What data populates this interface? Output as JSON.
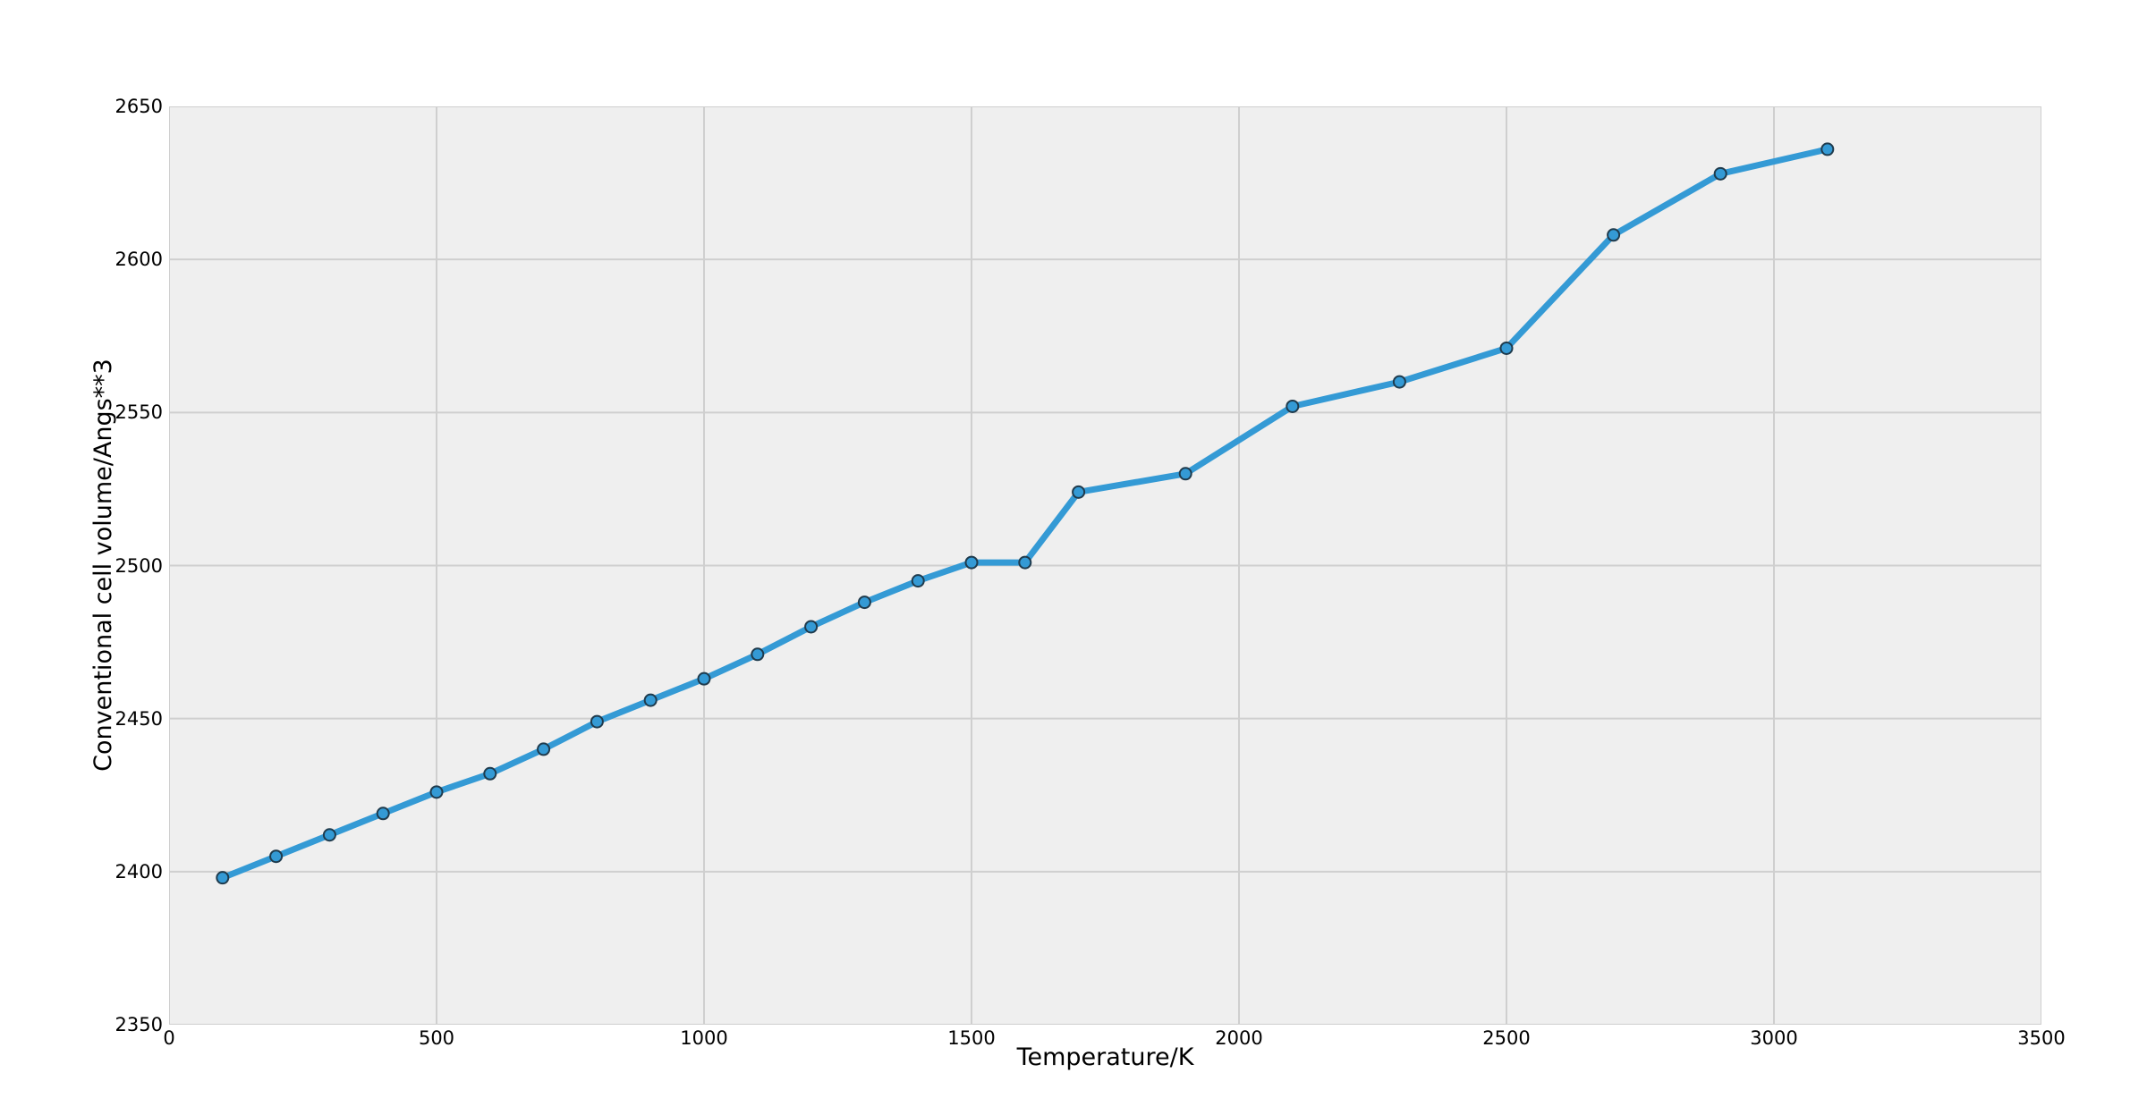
{
  "figure": {
    "background": "#ffffff",
    "plot_background": "#efefef",
    "grid_color": "#cfcfcf",
    "line_color": "#349ad5",
    "marker_edge_color": "#1f3b4d",
    "text_color": "#000000"
  },
  "chart_data": {
    "type": "line",
    "xlabel": "Temperature/K",
    "ylabel": "Conventional cell volume/Angs**3",
    "xlim": [
      0,
      3500
    ],
    "ylim": [
      2350,
      2650
    ],
    "x_ticks": [
      0,
      500,
      1000,
      1500,
      2000,
      2500,
      3000,
      3500
    ],
    "y_ticks": [
      2350,
      2400,
      2450,
      2500,
      2550,
      2600,
      2650
    ],
    "grid": true,
    "legend_position": "none",
    "series": [
      {
        "name": "Conventional cell volume",
        "x": [
          100,
          200,
          300,
          400,
          500,
          600,
          700,
          800,
          900,
          1000,
          1100,
          1200,
          1300,
          1400,
          1500,
          1600,
          1700,
          1900,
          2100,
          2300,
          2500,
          2700,
          2900,
          3100
        ],
        "y": [
          2398,
          2405,
          2412,
          2419,
          2426,
          2432,
          2440,
          2449,
          2456,
          2463,
          2471,
          2480,
          2488,
          2495,
          2501,
          2501,
          2524,
          2530,
          2552,
          2560,
          2571,
          2608,
          2628,
          2636
        ],
        "marker": "circle"
      }
    ]
  }
}
